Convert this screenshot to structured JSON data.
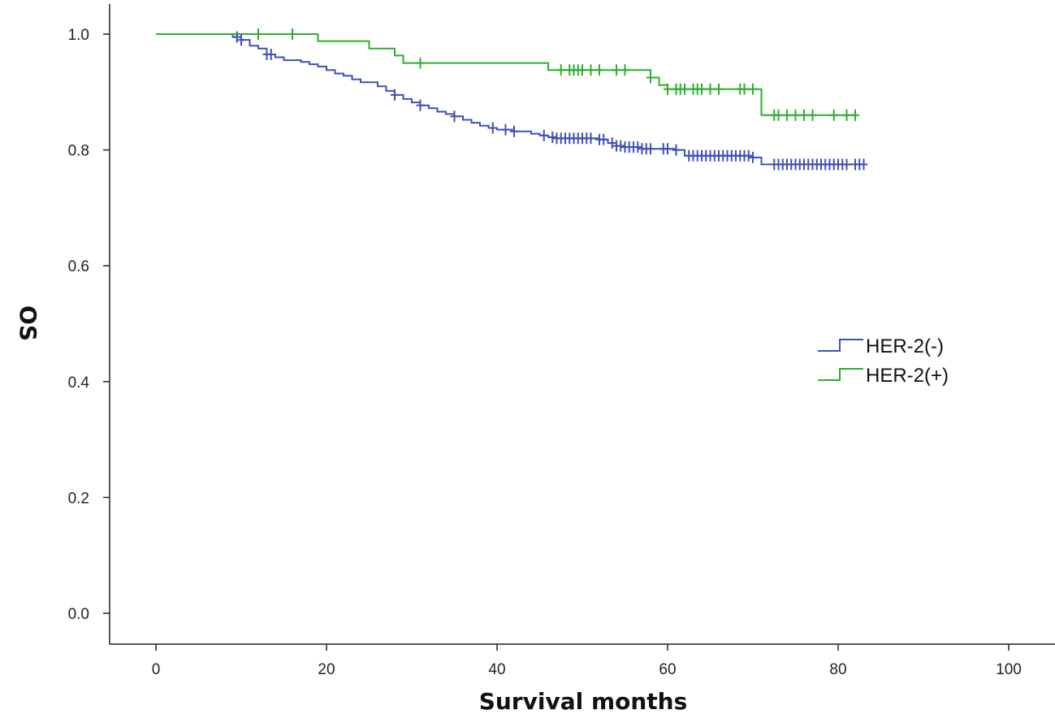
{
  "chart_data": {
    "type": "line",
    "subtype": "kaplan-meier",
    "title": "",
    "xlabel": "Survival months",
    "ylabel": "OS",
    "xlim": [
      0,
      100
    ],
    "ylim": [
      0.0,
      1.0
    ],
    "xticks": [
      0,
      20,
      40,
      60,
      80,
      100
    ],
    "yticks": [
      0.0,
      0.2,
      0.4,
      0.6,
      0.8,
      1.0
    ],
    "xtick_labels": [
      "0",
      "20",
      "40",
      "60",
      "80",
      "100"
    ],
    "ytick_labels": [
      "0.0",
      "0.2",
      "0.4",
      "0.6",
      "0.8",
      "1.0"
    ],
    "grid": false,
    "legend_position": "right",
    "series": [
      {
        "name": "HER-2(-)",
        "color": "#3f51b5",
        "steps": [
          [
            0,
            1.0
          ],
          [
            9,
            0.995
          ],
          [
            10,
            0.99
          ],
          [
            11,
            0.98
          ],
          [
            12,
            0.975
          ],
          [
            13,
            0.965
          ],
          [
            14,
            0.96
          ],
          [
            15,
            0.955
          ],
          [
            17,
            0.952
          ],
          [
            18,
            0.948
          ],
          [
            19,
            0.944
          ],
          [
            20,
            0.938
          ],
          [
            21,
            0.932
          ],
          [
            22,
            0.928
          ],
          [
            23,
            0.922
          ],
          [
            24,
            0.917
          ],
          [
            26,
            0.91
          ],
          [
            27,
            0.902
          ],
          [
            28,
            0.895
          ],
          [
            29,
            0.888
          ],
          [
            30,
            0.882
          ],
          [
            31,
            0.877
          ],
          [
            32,
            0.872
          ],
          [
            33,
            0.866
          ],
          [
            34,
            0.862
          ],
          [
            35,
            0.858
          ],
          [
            36,
            0.852
          ],
          [
            37,
            0.847
          ],
          [
            38,
            0.842
          ],
          [
            39,
            0.838
          ],
          [
            40,
            0.835
          ],
          [
            42,
            0.832
          ],
          [
            44,
            0.828
          ],
          [
            45,
            0.825
          ],
          [
            46,
            0.822
          ],
          [
            47,
            0.82
          ],
          [
            52,
            0.818
          ],
          [
            53,
            0.812
          ],
          [
            54,
            0.807
          ],
          [
            55,
            0.805
          ],
          [
            57,
            0.802
          ],
          [
            61,
            0.8
          ],
          [
            62,
            0.79
          ],
          [
            70,
            0.787
          ],
          [
            71,
            0.775
          ],
          [
            83,
            0.775
          ]
        ],
        "censored": [
          9.5,
          10,
          13,
          13.5,
          28,
          31,
          35,
          39.5,
          41,
          42,
          45.5,
          46.5,
          47,
          47.5,
          48,
          48.5,
          49,
          49.5,
          50,
          50.5,
          51,
          52,
          52.5,
          53.5,
          54,
          54.5,
          55,
          55.5,
          56,
          56.5,
          57,
          57.5,
          58,
          59.5,
          60,
          61,
          62.5,
          63,
          63.5,
          64,
          64.5,
          65,
          65.5,
          66,
          66.5,
          67,
          67.5,
          68,
          68.5,
          69,
          69.5,
          70,
          72.5,
          73,
          73.5,
          74,
          74.5,
          75,
          75.5,
          76,
          76.5,
          77,
          77.5,
          78,
          78.5,
          79,
          79.5,
          80,
          80.5,
          81,
          82,
          82.5,
          83
        ]
      },
      {
        "name": "HER-2(+)",
        "color": "#2cae2c",
        "steps": [
          [
            0,
            1.0
          ],
          [
            19,
            0.988
          ],
          [
            25,
            0.975
          ],
          [
            28,
            0.963
          ],
          [
            29,
            0.95
          ],
          [
            46,
            0.938
          ],
          [
            58,
            0.925
          ],
          [
            59,
            0.912
          ],
          [
            60,
            0.905
          ],
          [
            71,
            0.86
          ],
          [
            82,
            0.86
          ]
        ],
        "censored": [
          12,
          16,
          31,
          47.5,
          48.5,
          49,
          49.5,
          50,
          51,
          52,
          54,
          55,
          58,
          60,
          61,
          61.5,
          62,
          63,
          63.5,
          64,
          65,
          66,
          68.5,
          69,
          70,
          72.5,
          73,
          74,
          75,
          76,
          77,
          79.5,
          81,
          82
        ]
      }
    ]
  }
}
